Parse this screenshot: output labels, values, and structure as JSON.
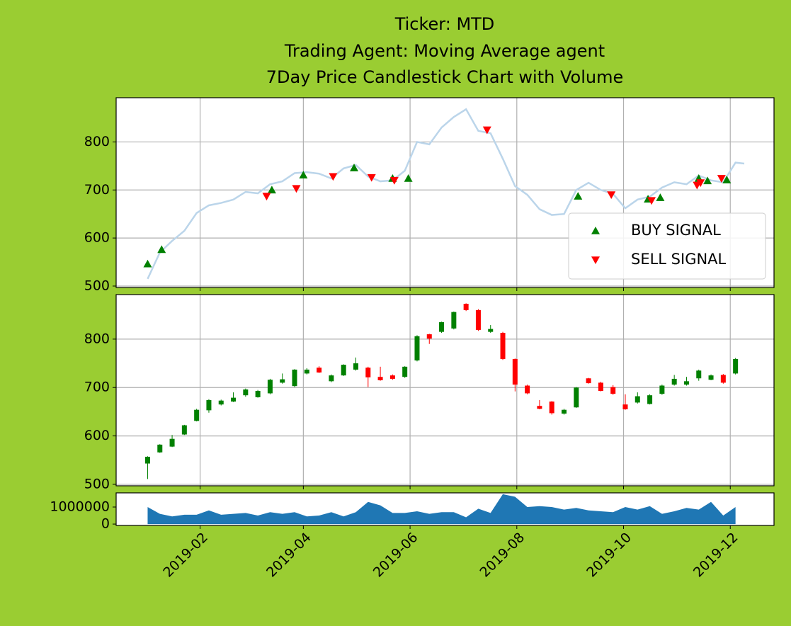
{
  "chart_data": [
    {
      "type": "line",
      "title": [
        "Ticker: MTD",
        "Trading Agent: Moving Average agent",
        "7Day Price Candlestick Chart with Volume"
      ],
      "x": [
        "2019-01-02",
        "2019-01-09",
        "2019-01-16",
        "2019-01-23",
        "2019-01-30",
        "2019-02-06",
        "2019-02-13",
        "2019-02-20",
        "2019-02-27",
        "2019-03-06",
        "2019-03-13",
        "2019-03-20",
        "2019-03-27",
        "2019-04-03",
        "2019-04-10",
        "2019-04-17",
        "2019-04-24",
        "2019-05-01",
        "2019-05-08",
        "2019-05-15",
        "2019-05-22",
        "2019-05-29",
        "2019-06-05",
        "2019-06-12",
        "2019-06-19",
        "2019-06-26",
        "2019-07-03",
        "2019-07-10",
        "2019-07-17",
        "2019-07-24",
        "2019-07-31",
        "2019-08-07",
        "2019-08-14",
        "2019-08-21",
        "2019-08-28",
        "2019-09-04",
        "2019-09-11",
        "2019-09-18",
        "2019-09-25",
        "2019-10-02",
        "2019-10-09",
        "2019-10-16",
        "2019-10-23",
        "2019-10-30",
        "2019-11-06",
        "2019-11-13",
        "2019-11-20",
        "2019-11-27",
        "2019-12-04",
        "2019-12-09"
      ],
      "values": [
        515,
        570,
        594,
        615,
        652,
        668,
        673,
        680,
        696,
        693,
        712,
        718,
        735,
        737,
        734,
        724,
        745,
        752,
        728,
        718,
        720,
        740,
        800,
        795,
        830,
        852,
        868,
        823,
        818,
        765,
        708,
        690,
        660,
        648,
        650,
        700,
        715,
        700,
        692,
        662,
        680,
        686,
        705,
        716,
        712,
        730,
        720,
        716,
        757,
        755
      ],
      "color": "#bbd5ea",
      "series": [
        {
          "name": "BUY SIGNAL",
          "color": "#008000",
          "marker": "triangle-up",
          "x": [
            "2019-01-02",
            "2019-01-10",
            "2019-03-14",
            "2019-04-01",
            "2019-04-30",
            "2019-05-22",
            "2019-05-31",
            "2019-09-05",
            "2019-10-15",
            "2019-10-22",
            "2019-11-13",
            "2019-11-18",
            "2019-11-29"
          ],
          "values": [
            546,
            576,
            700,
            731,
            746,
            724,
            724,
            687,
            681,
            684,
            724,
            719,
            721
          ]
        },
        {
          "name": "SELL SIGNAL",
          "color": "#ff0000",
          "marker": "triangle-down",
          "x": [
            "2019-03-11",
            "2019-03-28",
            "2019-04-18",
            "2019-05-10",
            "2019-05-23",
            "2019-07-15",
            "2019-09-24",
            "2019-10-17",
            "2019-11-12",
            "2019-11-14",
            "2019-11-26"
          ],
          "values": [
            687,
            703,
            728,
            726,
            720,
            825,
            690,
            678,
            710,
            715,
            724
          ]
        }
      ],
      "legend": "lower right",
      "xlim": [
        "2018-12-15",
        "2019-12-26"
      ],
      "xticks": [
        "2019-02-01",
        "2019-04-01",
        "2019-06-01",
        "2019-08-01",
        "2019-10-01",
        "2019-12-01"
      ],
      "ylim": [
        497,
        892
      ],
      "yticks": [
        500,
        600,
        700,
        800
      ],
      "grid": true
    },
    {
      "type": "candlestick",
      "x": [
        "2019-01-02",
        "2019-01-09",
        "2019-01-16",
        "2019-01-23",
        "2019-01-30",
        "2019-02-06",
        "2019-02-13",
        "2019-02-20",
        "2019-02-27",
        "2019-03-06",
        "2019-03-13",
        "2019-03-20",
        "2019-03-27",
        "2019-04-03",
        "2019-04-10",
        "2019-04-17",
        "2019-04-24",
        "2019-05-01",
        "2019-05-08",
        "2019-05-15",
        "2019-05-22",
        "2019-05-29",
        "2019-06-05",
        "2019-06-12",
        "2019-06-19",
        "2019-06-26",
        "2019-07-03",
        "2019-07-10",
        "2019-07-17",
        "2019-07-24",
        "2019-07-31",
        "2019-08-07",
        "2019-08-14",
        "2019-08-21",
        "2019-08-28",
        "2019-09-04",
        "2019-09-11",
        "2019-09-18",
        "2019-09-25",
        "2019-10-02",
        "2019-10-09",
        "2019-10-16",
        "2019-10-23",
        "2019-10-30",
        "2019-11-06",
        "2019-11-13",
        "2019-11-20",
        "2019-11-27",
        "2019-12-04"
      ],
      "open": [
        543,
        566,
        578,
        603,
        631,
        653,
        665,
        671,
        684,
        680,
        688,
        710,
        703,
        729,
        741,
        713,
        725,
        737,
        741,
        722,
        725,
        722,
        756,
        810,
        815,
        822,
        873,
        860,
        815,
        813,
        759,
        704,
        662,
        671,
        646,
        659,
        719,
        710,
        701,
        665,
        669,
        666,
        687,
        706,
        706,
        719,
        716,
        726,
        729
      ],
      "close": [
        557,
        582,
        594,
        622,
        654,
        674,
        673,
        679,
        696,
        693,
        716,
        717,
        737,
        737,
        731,
        725,
        747,
        750,
        721,
        715,
        718,
        743,
        806,
        801,
        835,
        856,
        860,
        819,
        821,
        759,
        706,
        688,
        656,
        647,
        654,
        700,
        709,
        693,
        687,
        655,
        682,
        684,
        704,
        718,
        713,
        735,
        725,
        710,
        759
      ],
      "high": [
        558,
        583,
        602,
        623,
        656,
        676,
        675,
        690,
        698,
        695,
        718,
        729,
        738,
        740,
        744,
        727,
        748,
        762,
        743,
        743,
        727,
        744,
        808,
        811,
        836,
        857,
        874,
        862,
        829,
        815,
        760,
        706,
        674,
        672,
        656,
        701,
        720,
        712,
        705,
        686,
        690,
        686,
        706,
        726,
        722,
        737,
        727,
        728,
        761
      ],
      "low": [
        511,
        565,
        577,
        602,
        630,
        648,
        663,
        670,
        681,
        679,
        686,
        708,
        701,
        727,
        730,
        711,
        724,
        735,
        701,
        714,
        716,
        720,
        754,
        790,
        813,
        820,
        858,
        817,
        813,
        757,
        692,
        686,
        655,
        644,
        644,
        658,
        708,
        692,
        685,
        654,
        667,
        665,
        685,
        704,
        704,
        714,
        715,
        708,
        727
      ],
      "up_color": "#008000",
      "down_color": "#ff0000",
      "xlim": [
        "2018-12-15",
        "2019-12-26"
      ],
      "xticks": [
        "2019-02-01",
        "2019-04-01",
        "2019-06-01",
        "2019-08-01",
        "2019-10-01",
        "2019-12-01"
      ],
      "ylim": [
        497,
        892
      ],
      "yticks": [
        500,
        600,
        700,
        800
      ],
      "grid": true
    },
    {
      "type": "area",
      "x": [
        "2019-01-02",
        "2019-01-09",
        "2019-01-16",
        "2019-01-23",
        "2019-01-30",
        "2019-02-06",
        "2019-02-13",
        "2019-02-20",
        "2019-02-27",
        "2019-03-06",
        "2019-03-13",
        "2019-03-20",
        "2019-03-27",
        "2019-04-03",
        "2019-04-10",
        "2019-04-17",
        "2019-04-24",
        "2019-05-01",
        "2019-05-08",
        "2019-05-15",
        "2019-05-22",
        "2019-05-29",
        "2019-06-05",
        "2019-06-12",
        "2019-06-19",
        "2019-06-26",
        "2019-07-03",
        "2019-07-10",
        "2019-07-17",
        "2019-07-24",
        "2019-07-31",
        "2019-08-07",
        "2019-08-14",
        "2019-08-21",
        "2019-08-28",
        "2019-09-04",
        "2019-09-11",
        "2019-09-18",
        "2019-09-25",
        "2019-10-02",
        "2019-10-09",
        "2019-10-16",
        "2019-10-23",
        "2019-10-30",
        "2019-11-06",
        "2019-11-13",
        "2019-11-20",
        "2019-11-27",
        "2019-12-04"
      ],
      "values": [
        1000000,
        600000,
        450000,
        550000,
        550000,
        800000,
        550000,
        600000,
        650000,
        500000,
        700000,
        600000,
        700000,
        450000,
        500000,
        700000,
        450000,
        700000,
        1300000,
        1100000,
        650000,
        650000,
        750000,
        600000,
        700000,
        700000,
        400000,
        900000,
        650000,
        1750000,
        1600000,
        1000000,
        1050000,
        1000000,
        850000,
        950000,
        800000,
        750000,
        700000,
        1000000,
        850000,
        1050000,
        600000,
        750000,
        950000,
        850000,
        1300000,
        500000,
        1000000
      ],
      "color": "#1f77b4",
      "xlim": [
        "2018-12-15",
        "2019-12-26"
      ],
      "xticks": [
        {
          "value": "2019-02-01",
          "label": "2019-02"
        },
        {
          "value": "2019-04-01",
          "label": "2019-04"
        },
        {
          "value": "2019-06-01",
          "label": "2019-06"
        },
        {
          "value": "2019-08-01",
          "label": "2019-08"
        },
        {
          "value": "2019-10-01",
          "label": "2019-10"
        },
        {
          "value": "2019-12-01",
          "label": "2019-12"
        }
      ],
      "ylim": [
        -80000,
        1830000
      ],
      "yticks": [
        0,
        1000000
      ],
      "grid": false
    }
  ]
}
